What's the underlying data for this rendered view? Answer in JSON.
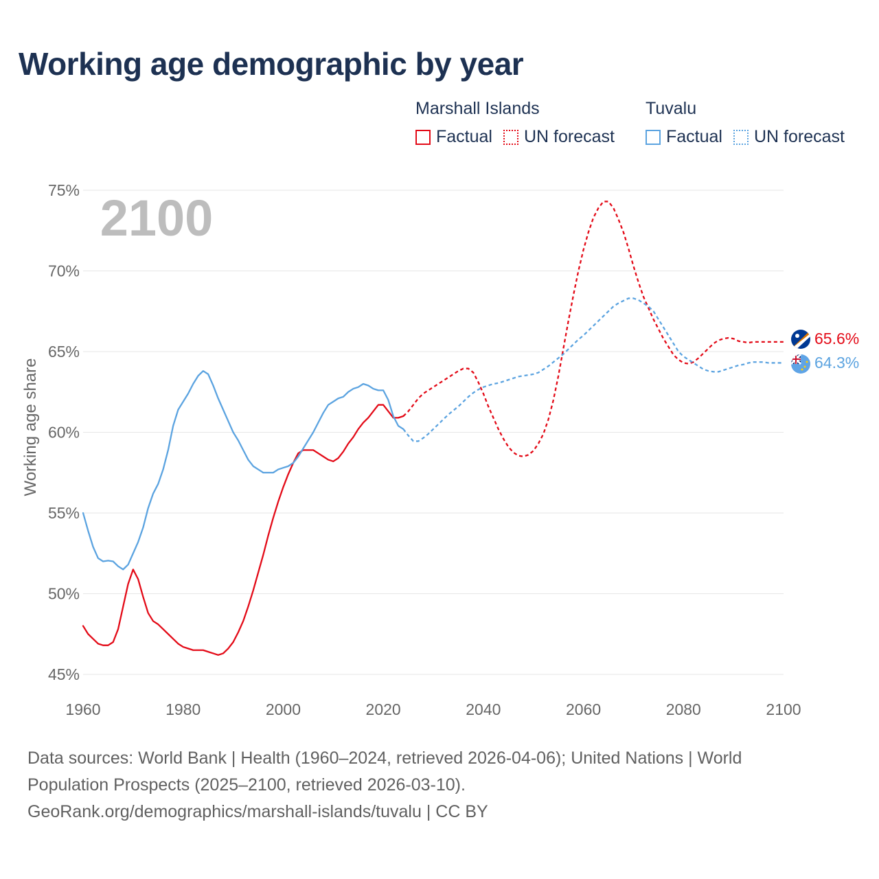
{
  "title": "Working age demographic by year",
  "colors": {
    "marshall": "#e30a17",
    "tuvalu": "#5ba3e0",
    "grid": "#e6e6e6",
    "axis_text": "#666666",
    "year_watermark": "#bdbdbd"
  },
  "legend": {
    "groups": [
      {
        "name": "Marshall Islands",
        "factual": "Factual",
        "forecast": "UN forecast"
      },
      {
        "name": "Tuvalu",
        "factual": "Factual",
        "forecast": "UN forecast"
      }
    ]
  },
  "current_year": "2100",
  "chart_data": {
    "type": "line",
    "title": "Working age demographic by year",
    "xlabel": "",
    "ylabel": "Working age share",
    "xlim": [
      1960,
      2100
    ],
    "ylim": [
      45,
      75
    ],
    "x_ticks": [
      1960,
      1980,
      2000,
      2020,
      2040,
      2060,
      2080,
      2100
    ],
    "y_ticks": [
      45,
      50,
      55,
      60,
      65,
      70,
      75
    ],
    "y_tick_labels": [
      "45%",
      "50%",
      "55%",
      "60%",
      "65%",
      "70%",
      "75%"
    ],
    "grid": true,
    "factual_range": [
      1960,
      2024
    ],
    "forecast_range": [
      2024,
      2100
    ],
    "series": [
      {
        "name": "Marshall Islands",
        "color": "#e30a17",
        "end_label": "65.6%",
        "points": [
          [
            1960,
            48.0
          ],
          [
            1961,
            47.5
          ],
          [
            1962,
            47.2
          ],
          [
            1963,
            46.9
          ],
          [
            1964,
            46.8
          ],
          [
            1965,
            46.8
          ],
          [
            1966,
            47.0
          ],
          [
            1967,
            47.8
          ],
          [
            1968,
            49.2
          ],
          [
            1969,
            50.6
          ],
          [
            1970,
            51.5
          ],
          [
            1971,
            50.9
          ],
          [
            1972,
            49.8
          ],
          [
            1973,
            48.8
          ],
          [
            1974,
            48.3
          ],
          [
            1975,
            48.1
          ],
          [
            1976,
            47.8
          ],
          [
            1977,
            47.5
          ],
          [
            1978,
            47.2
          ],
          [
            1979,
            46.9
          ],
          [
            1980,
            46.7
          ],
          [
            1981,
            46.6
          ],
          [
            1982,
            46.5
          ],
          [
            1983,
            46.5
          ],
          [
            1984,
            46.5
          ],
          [
            1985,
            46.4
          ],
          [
            1986,
            46.3
          ],
          [
            1987,
            46.2
          ],
          [
            1988,
            46.3
          ],
          [
            1989,
            46.6
          ],
          [
            1990,
            47.0
          ],
          [
            1991,
            47.6
          ],
          [
            1992,
            48.3
          ],
          [
            1993,
            49.2
          ],
          [
            1994,
            50.2
          ],
          [
            1995,
            51.3
          ],
          [
            1996,
            52.4
          ],
          [
            1997,
            53.6
          ],
          [
            1998,
            54.7
          ],
          [
            1999,
            55.7
          ],
          [
            2000,
            56.6
          ],
          [
            2001,
            57.4
          ],
          [
            2002,
            58.1
          ],
          [
            2003,
            58.7
          ],
          [
            2004,
            58.9
          ],
          [
            2005,
            58.9
          ],
          [
            2006,
            58.9
          ],
          [
            2007,
            58.7
          ],
          [
            2008,
            58.5
          ],
          [
            2009,
            58.3
          ],
          [
            2010,
            58.2
          ],
          [
            2011,
            58.4
          ],
          [
            2012,
            58.8
          ],
          [
            2013,
            59.3
          ],
          [
            2014,
            59.7
          ],
          [
            2015,
            60.2
          ],
          [
            2016,
            60.6
          ],
          [
            2017,
            60.9
          ],
          [
            2018,
            61.3
          ],
          [
            2019,
            61.7
          ],
          [
            2020,
            61.7
          ],
          [
            2021,
            61.3
          ],
          [
            2022,
            60.9
          ],
          [
            2023,
            60.9
          ],
          [
            2024,
            61.0
          ],
          [
            2025,
            61.3
          ],
          [
            2026,
            61.7
          ],
          [
            2027,
            62.1
          ],
          [
            2028,
            62.4
          ],
          [
            2029,
            62.6
          ],
          [
            2030,
            62.8
          ],
          [
            2031,
            63.0
          ],
          [
            2032,
            63.2
          ],
          [
            2033,
            63.4
          ],
          [
            2034,
            63.6
          ],
          [
            2035,
            63.8
          ],
          [
            2036,
            63.95
          ],
          [
            2037,
            63.95
          ],
          [
            2038,
            63.7
          ],
          [
            2039,
            63.1
          ],
          [
            2040,
            62.4
          ],
          [
            2041,
            61.6
          ],
          [
            2042,
            60.9
          ],
          [
            2043,
            60.2
          ],
          [
            2044,
            59.6
          ],
          [
            2045,
            59.1
          ],
          [
            2046,
            58.75
          ],
          [
            2047,
            58.55
          ],
          [
            2048,
            58.5
          ],
          [
            2049,
            58.6
          ],
          [
            2050,
            58.85
          ],
          [
            2051,
            59.3
          ],
          [
            2052,
            59.9
          ],
          [
            2053,
            60.8
          ],
          [
            2054,
            62.0
          ],
          [
            2055,
            63.5
          ],
          [
            2056,
            65.2
          ],
          [
            2057,
            66.9
          ],
          [
            2058,
            68.5
          ],
          [
            2059,
            70.0
          ],
          [
            2060,
            71.3
          ],
          [
            2061,
            72.4
          ],
          [
            2062,
            73.3
          ],
          [
            2063,
            73.9
          ],
          [
            2064,
            74.3
          ],
          [
            2065,
            74.3
          ],
          [
            2066,
            73.9
          ],
          [
            2067,
            73.2
          ],
          [
            2068,
            72.4
          ],
          [
            2069,
            71.4
          ],
          [
            2070,
            70.3
          ],
          [
            2071,
            69.3
          ],
          [
            2072,
            68.4
          ],
          [
            2073,
            67.7
          ],
          [
            2074,
            67.0
          ],
          [
            2075,
            66.4
          ],
          [
            2076,
            65.8
          ],
          [
            2077,
            65.3
          ],
          [
            2078,
            64.8
          ],
          [
            2079,
            64.5
          ],
          [
            2080,
            64.3
          ],
          [
            2081,
            64.25
          ],
          [
            2082,
            64.35
          ],
          [
            2083,
            64.6
          ],
          [
            2084,
            64.9
          ],
          [
            2085,
            65.2
          ],
          [
            2086,
            65.5
          ],
          [
            2087,
            65.7
          ],
          [
            2088,
            65.8
          ],
          [
            2089,
            65.85
          ],
          [
            2090,
            65.8
          ],
          [
            2091,
            65.65
          ],
          [
            2092,
            65.6
          ],
          [
            2093,
            65.55
          ],
          [
            2094,
            65.6
          ],
          [
            2095,
            65.6
          ],
          [
            2096,
            65.6
          ],
          [
            2097,
            65.6
          ],
          [
            2098,
            65.6
          ],
          [
            2099,
            65.6
          ],
          [
            2100,
            65.6
          ]
        ]
      },
      {
        "name": "Tuvalu",
        "color": "#5ba3e0",
        "end_label": "64.3%",
        "points": [
          [
            1960,
            55.0
          ],
          [
            1961,
            53.9
          ],
          [
            1962,
            52.9
          ],
          [
            1963,
            52.2
          ],
          [
            1964,
            52.0
          ],
          [
            1965,
            52.05
          ],
          [
            1966,
            52.0
          ],
          [
            1967,
            51.7
          ],
          [
            1968,
            51.5
          ],
          [
            1969,
            51.8
          ],
          [
            1970,
            52.5
          ],
          [
            1971,
            53.2
          ],
          [
            1972,
            54.1
          ],
          [
            1973,
            55.3
          ],
          [
            1974,
            56.2
          ],
          [
            1975,
            56.8
          ],
          [
            1976,
            57.7
          ],
          [
            1977,
            58.9
          ],
          [
            1978,
            60.4
          ],
          [
            1979,
            61.4
          ],
          [
            1980,
            61.9
          ],
          [
            1981,
            62.4
          ],
          [
            1982,
            63.0
          ],
          [
            1983,
            63.5
          ],
          [
            1984,
            63.8
          ],
          [
            1985,
            63.6
          ],
          [
            1986,
            62.9
          ],
          [
            1987,
            62.1
          ],
          [
            1988,
            61.4
          ],
          [
            1989,
            60.7
          ],
          [
            1990,
            60.0
          ],
          [
            1991,
            59.5
          ],
          [
            1992,
            58.9
          ],
          [
            1993,
            58.3
          ],
          [
            1994,
            57.9
          ],
          [
            1995,
            57.7
          ],
          [
            1996,
            57.5
          ],
          [
            1997,
            57.5
          ],
          [
            1998,
            57.5
          ],
          [
            1999,
            57.7
          ],
          [
            2000,
            57.8
          ],
          [
            2001,
            57.9
          ],
          [
            2002,
            58.1
          ],
          [
            2003,
            58.5
          ],
          [
            2004,
            59.0
          ],
          [
            2005,
            59.5
          ],
          [
            2006,
            60.0
          ],
          [
            2007,
            60.6
          ],
          [
            2008,
            61.2
          ],
          [
            2009,
            61.7
          ],
          [
            2010,
            61.9
          ],
          [
            2011,
            62.1
          ],
          [
            2012,
            62.2
          ],
          [
            2013,
            62.5
          ],
          [
            2014,
            62.7
          ],
          [
            2015,
            62.8
          ],
          [
            2016,
            63.0
          ],
          [
            2017,
            62.9
          ],
          [
            2018,
            62.7
          ],
          [
            2019,
            62.6
          ],
          [
            2020,
            62.6
          ],
          [
            2021,
            62.0
          ],
          [
            2022,
            61.0
          ],
          [
            2023,
            60.4
          ],
          [
            2024,
            60.2
          ],
          [
            2025,
            59.8
          ],
          [
            2026,
            59.45
          ],
          [
            2027,
            59.45
          ],
          [
            2028,
            59.65
          ],
          [
            2029,
            59.9
          ],
          [
            2030,
            60.2
          ],
          [
            2031,
            60.5
          ],
          [
            2032,
            60.8
          ],
          [
            2033,
            61.1
          ],
          [
            2034,
            61.35
          ],
          [
            2035,
            61.6
          ],
          [
            2036,
            61.9
          ],
          [
            2037,
            62.2
          ],
          [
            2038,
            62.45
          ],
          [
            2039,
            62.65
          ],
          [
            2040,
            62.8
          ],
          [
            2041,
            62.9
          ],
          [
            2042,
            63.0
          ],
          [
            2043,
            63.05
          ],
          [
            2044,
            63.15
          ],
          [
            2045,
            63.25
          ],
          [
            2046,
            63.35
          ],
          [
            2047,
            63.45
          ],
          [
            2048,
            63.5
          ],
          [
            2049,
            63.55
          ],
          [
            2050,
            63.6
          ],
          [
            2051,
            63.7
          ],
          [
            2052,
            63.9
          ],
          [
            2053,
            64.1
          ],
          [
            2054,
            64.35
          ],
          [
            2055,
            64.6
          ],
          [
            2056,
            64.85
          ],
          [
            2057,
            65.15
          ],
          [
            2058,
            65.45
          ],
          [
            2059,
            65.75
          ],
          [
            2060,
            66.0
          ],
          [
            2061,
            66.3
          ],
          [
            2062,
            66.6
          ],
          [
            2063,
            66.9
          ],
          [
            2064,
            67.2
          ],
          [
            2065,
            67.5
          ],
          [
            2066,
            67.8
          ],
          [
            2067,
            68.0
          ],
          [
            2068,
            68.15
          ],
          [
            2069,
            68.3
          ],
          [
            2070,
            68.3
          ],
          [
            2071,
            68.2
          ],
          [
            2072,
            68.0
          ],
          [
            2073,
            67.8
          ],
          [
            2074,
            67.5
          ],
          [
            2075,
            67.0
          ],
          [
            2076,
            66.5
          ],
          [
            2077,
            66.0
          ],
          [
            2078,
            65.5
          ],
          [
            2079,
            65.0
          ],
          [
            2080,
            64.7
          ],
          [
            2081,
            64.5
          ],
          [
            2082,
            64.3
          ],
          [
            2083,
            64.1
          ],
          [
            2084,
            63.9
          ],
          [
            2085,
            63.8
          ],
          [
            2086,
            63.75
          ],
          [
            2087,
            63.75
          ],
          [
            2088,
            63.85
          ],
          [
            2089,
            63.95
          ],
          [
            2090,
            64.05
          ],
          [
            2091,
            64.15
          ],
          [
            2092,
            64.2
          ],
          [
            2093,
            64.3
          ],
          [
            2094,
            64.35
          ],
          [
            2095,
            64.35
          ],
          [
            2096,
            64.35
          ],
          [
            2097,
            64.3
          ],
          [
            2098,
            64.3
          ],
          [
            2099,
            64.3
          ],
          [
            2100,
            64.3
          ]
        ]
      }
    ]
  },
  "footer": {
    "line1": "Data sources: World Bank | Health (1960–2024, retrieved 2026-04-06); United Nations | World",
    "line2": "Population Prospects (2025–2100, retrieved 2026-03-10).",
    "line3": "GeoRank.org/demographics/marshall-islands/tuvalu | CC BY"
  }
}
